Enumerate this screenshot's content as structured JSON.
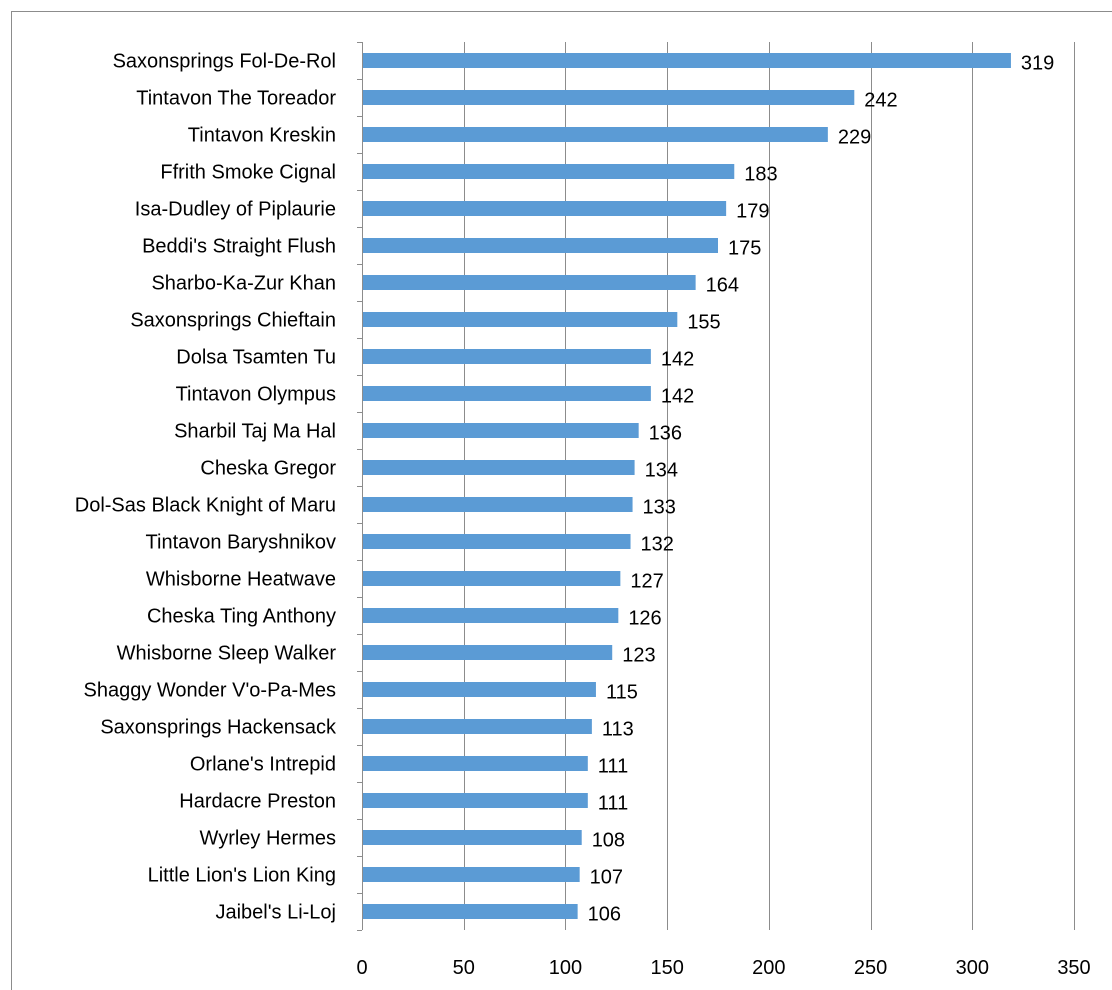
{
  "chart_data": {
    "type": "bar",
    "orientation": "horizontal",
    "title": "",
    "xlabel": "",
    "ylabel": "",
    "xlim": [
      0,
      350
    ],
    "x_ticks": [
      0,
      50,
      100,
      150,
      200,
      250,
      300,
      350
    ],
    "grid": "vertical",
    "legend": "none",
    "bar_color": "#5b9bd5",
    "categories": [
      "Saxonsprings Fol-De-Rol",
      "Tintavon The Toreador",
      "Tintavon Kreskin",
      "Ffrith Smoke Cignal",
      "Isa-Dudley of Piplaurie",
      "Beddi's Straight Flush",
      "Sharbo-Ka-Zur Khan",
      "Saxonsprings Chieftain",
      "Dolsa Tsamten Tu",
      "Tintavon Olympus",
      "Sharbil Taj Ma Hal",
      "Cheska Gregor",
      "Dol-Sas Black Knight of Maru",
      "Tintavon Baryshnikov",
      "Whisborne Heatwave",
      "Cheska Ting Anthony",
      "Whisborne Sleep Walker",
      "Shaggy Wonder V'o-Pa-Mes",
      "Saxonsprings Hackensack",
      "Orlane's Intrepid",
      "Hardacre Preston",
      "Wyrley Hermes",
      "Little Lion's Lion King",
      "Jaibel's Li-Loj"
    ],
    "values": [
      319,
      242,
      229,
      183,
      179,
      175,
      164,
      155,
      142,
      142,
      136,
      134,
      133,
      132,
      127,
      126,
      123,
      115,
      113,
      111,
      111,
      108,
      107,
      106
    ]
  }
}
